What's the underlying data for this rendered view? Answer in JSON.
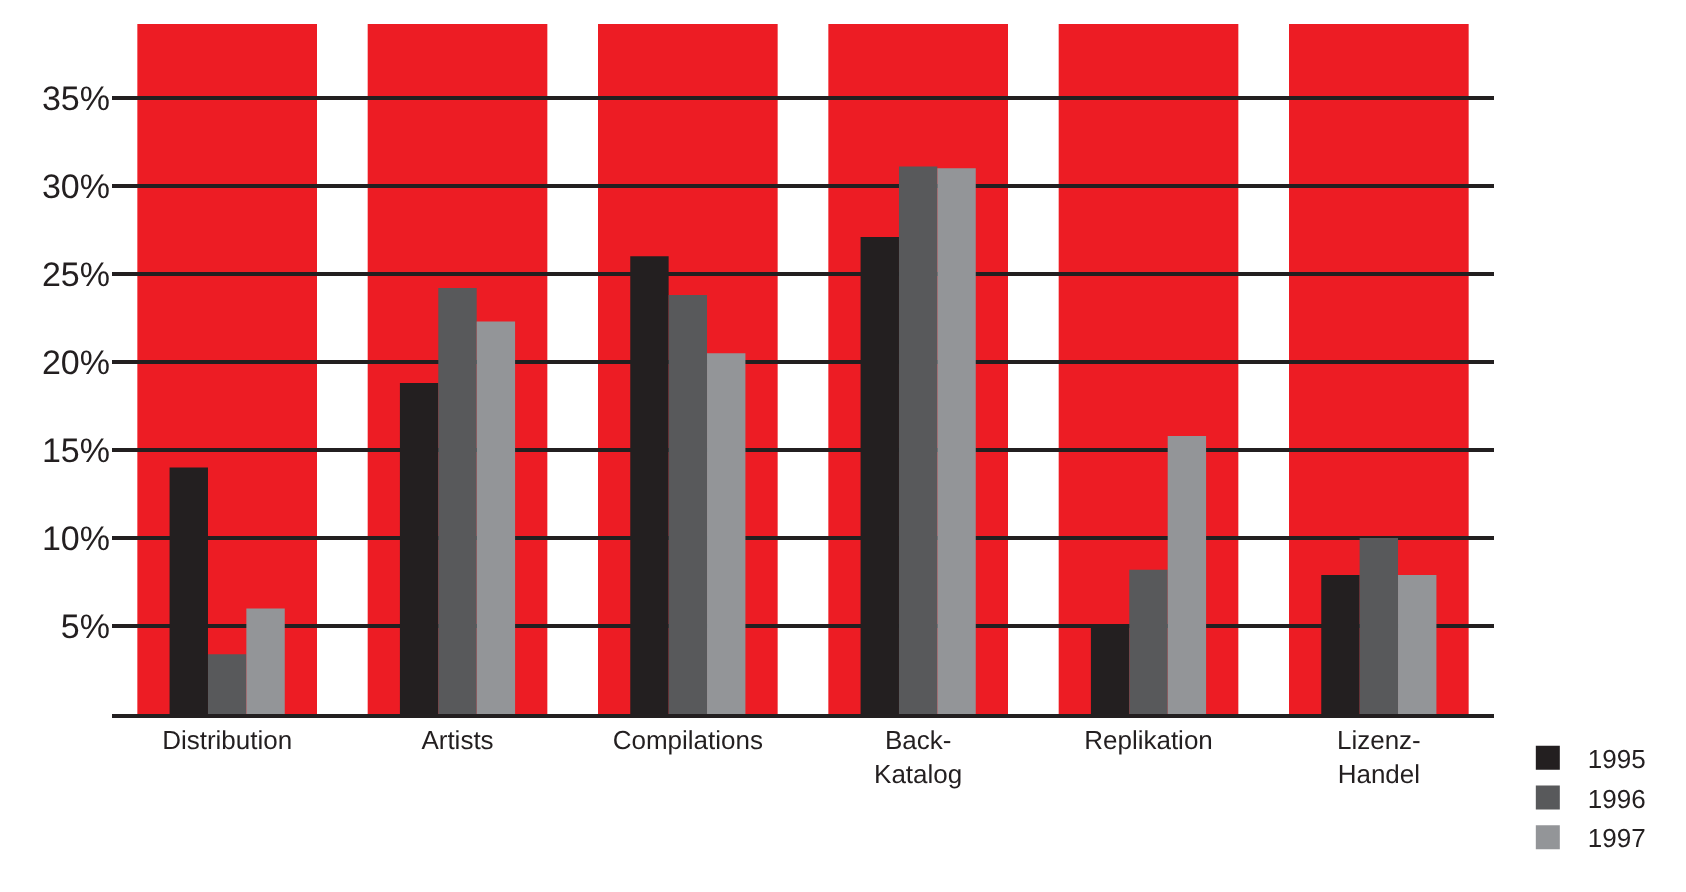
{
  "chart_data": {
    "type": "bar",
    "categories": [
      "Distribution",
      "Artists",
      "Compilations",
      "Back-\nKatalog",
      "Replikation",
      "Lizenz-\nHandel"
    ],
    "series": [
      {
        "name": "1995",
        "color": "#231f20",
        "values": [
          14.0,
          18.8,
          26.0,
          27.1,
          5.0,
          7.9
        ]
      },
      {
        "name": "1996",
        "color": "#58595b",
        "values": [
          3.4,
          24.2,
          23.8,
          31.1,
          8.2,
          10.0
        ]
      },
      {
        "name": "1997",
        "color": "#939598",
        "values": [
          6.0,
          22.3,
          20.5,
          31.0,
          15.8,
          7.9
        ]
      }
    ],
    "ylim": [
      0,
      39.2
    ],
    "yticks": [
      {
        "value": 5,
        "label": "5%"
      },
      {
        "value": 10,
        "label": "10%"
      },
      {
        "value": 15,
        "label": "15%"
      },
      {
        "value": 20,
        "label": "20%"
      },
      {
        "value": 25,
        "label": "25%"
      },
      {
        "value": 30,
        "label": "30%"
      },
      {
        "value": 35,
        "label": "35%"
      }
    ],
    "bands": [
      {
        "axis": "x",
        "from": "Distribution",
        "to": "Distribution",
        "color": "#ed1c24"
      },
      {
        "axis": "x",
        "from": "Artists",
        "to": "Artists",
        "color": "#ed1c24"
      },
      {
        "axis": "x",
        "from": "Compilations",
        "to": "Compilations",
        "color": "#ed1c24"
      },
      {
        "axis": "x",
        "from": "Back-\nKatalog",
        "to": "Back-\nKatalog",
        "color": "#ed1c24"
      },
      {
        "axis": "x",
        "from": "Replikation",
        "to": "Replikation",
        "color": "#ed1c24"
      },
      {
        "axis": "x",
        "from": "Lizenz-\nHandel",
        "to": "Lizenz-\nHandel",
        "color": "#ed1c24"
      }
    ],
    "grid": "y",
    "legend": "bottom right"
  }
}
